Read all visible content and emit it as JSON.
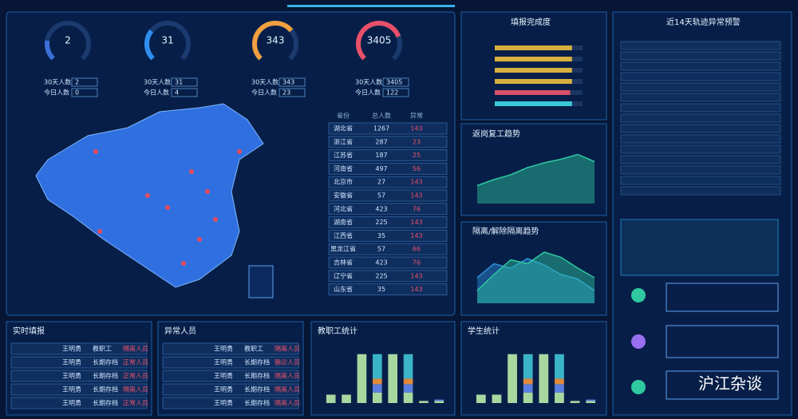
{
  "gauges": [
    {
      "value": 2,
      "lim": [
        0,
        10
      ],
      "color": "#3c6fd8",
      "stats": [
        2,
        0
      ]
    },
    {
      "value": 31,
      "lim": [
        0,
        100
      ],
      "color": "#2f8ff0",
      "stats": [
        31,
        4
      ]
    },
    {
      "value": 343,
      "lim": [
        0,
        500
      ],
      "color": "#f0a040",
      "stats": [
        343,
        23
      ]
    },
    {
      "value": 3405,
      "lim": [
        0,
        4500
      ],
      "color": "#e8506a",
      "stats": [
        3405,
        122
      ]
    }
  ],
  "stat_labels": [
    "30天人数",
    "今日人数"
  ],
  "province_table": {
    "headers": [
      "省份",
      "总人数",
      "异常"
    ],
    "rows": [
      [
        "湖北省",
        1267,
        143
      ],
      [
        "浙江省",
        287,
        23
      ],
      [
        "江苏省",
        187,
        25
      ],
      [
        "河南省",
        497,
        56
      ],
      [
        "北京市",
        27,
        143
      ],
      [
        "安徽省",
        57,
        143
      ],
      [
        "河北省",
        423,
        76
      ],
      [
        "湖南省",
        225,
        143
      ],
      [
        "江西省",
        35,
        143
      ],
      [
        "黑龙江省",
        57,
        66
      ],
      [
        "吉林省",
        423,
        76
      ],
      [
        "辽宁省",
        225,
        143
      ],
      [
        "山东省",
        35,
        143
      ]
    ]
  },
  "completion": {
    "title": "填报完成度",
    "values": [
      88,
      88,
      88,
      88,
      86,
      88
    ],
    "colors": [
      "#d8b040",
      "#d8b040",
      "#d8b040",
      "#d8b040",
      "#d8506a",
      "#3ac8d8"
    ],
    "lim": [
      0,
      100
    ]
  },
  "return_trend": {
    "title": "返岗复工趋势",
    "values": [
      30,
      40,
      48,
      60,
      68,
      74,
      82,
      70
    ],
    "ylim": [
      0,
      100
    ],
    "color": "#2fc8a0"
  },
  "isolation_trend": {
    "title": "隔离/解除隔离趋势",
    "ylim": [
      0,
      100
    ],
    "series": [
      {
        "color": "#2f8fe0",
        "values": [
          40,
          62,
          55,
          70,
          60,
          45,
          38,
          20
        ]
      },
      {
        "color": "#2fc8a0",
        "values": [
          20,
          45,
          68,
          62,
          80,
          72,
          55,
          40
        ]
      }
    ]
  },
  "trajectory": {
    "title": "近14天轨迹异常预警"
  },
  "realtime": {
    "title": "实时填报",
    "rows": [
      [
        "王明勇",
        "教职工",
        "隔离人员"
      ],
      [
        "王明勇",
        "长期存档",
        "正常人员"
      ],
      [
        "王明勇",
        "长期存档",
        "正常人员"
      ],
      [
        "王明勇",
        "长期存档",
        "隔离人员"
      ],
      [
        "王明勇",
        "长期存档",
        "正常人员"
      ]
    ]
  },
  "abnormal": {
    "title": "异常人员",
    "rows": [
      [
        "王明勇",
        "教职工",
        "隔离人员"
      ],
      [
        "王明勇",
        "长期存档",
        "确诊人员"
      ],
      [
        "王明勇",
        "长期存档",
        "隔离人员"
      ],
      [
        "王明勇",
        "长期存档",
        "隔离人员"
      ],
      [
        "王明勇",
        "长期存档",
        "隔离人员"
      ]
    ]
  },
  "staff_stats": {
    "title": "教职工统计",
    "ylim": [
      0,
      80
    ],
    "series": [
      {
        "color": "#a8d8a0",
        "values": [
          12,
          12,
          70,
          15,
          70,
          15,
          3,
          3
        ]
      },
      {
        "color": "#5b7fe0",
        "values": [
          0,
          0,
          0,
          12,
          0,
          12,
          0,
          2
        ]
      },
      {
        "color": "#e08a3c",
        "values": [
          0,
          0,
          0,
          8,
          0,
          8,
          0,
          0
        ]
      },
      {
        "color": "#3bb4c8",
        "values": [
          0,
          0,
          0,
          35,
          0,
          35,
          0,
          0
        ]
      }
    ]
  },
  "student_stats": {
    "title": "学生统计",
    "ylim": [
      0,
      80
    ],
    "series": [
      {
        "color": "#a8d8a0",
        "values": [
          12,
          12,
          70,
          15,
          70,
          15,
          3,
          3
        ]
      },
      {
        "color": "#5b7fe0",
        "values": [
          0,
          0,
          0,
          12,
          0,
          12,
          0,
          2
        ]
      },
      {
        "color": "#e08a3c",
        "values": [
          0,
          0,
          0,
          8,
          0,
          8,
          0,
          0
        ]
      },
      {
        "color": "#3bb4c8",
        "values": [
          0,
          0,
          0,
          35,
          0,
          35,
          0,
          0
        ]
      }
    ]
  },
  "watermark": "沪江杂谈"
}
